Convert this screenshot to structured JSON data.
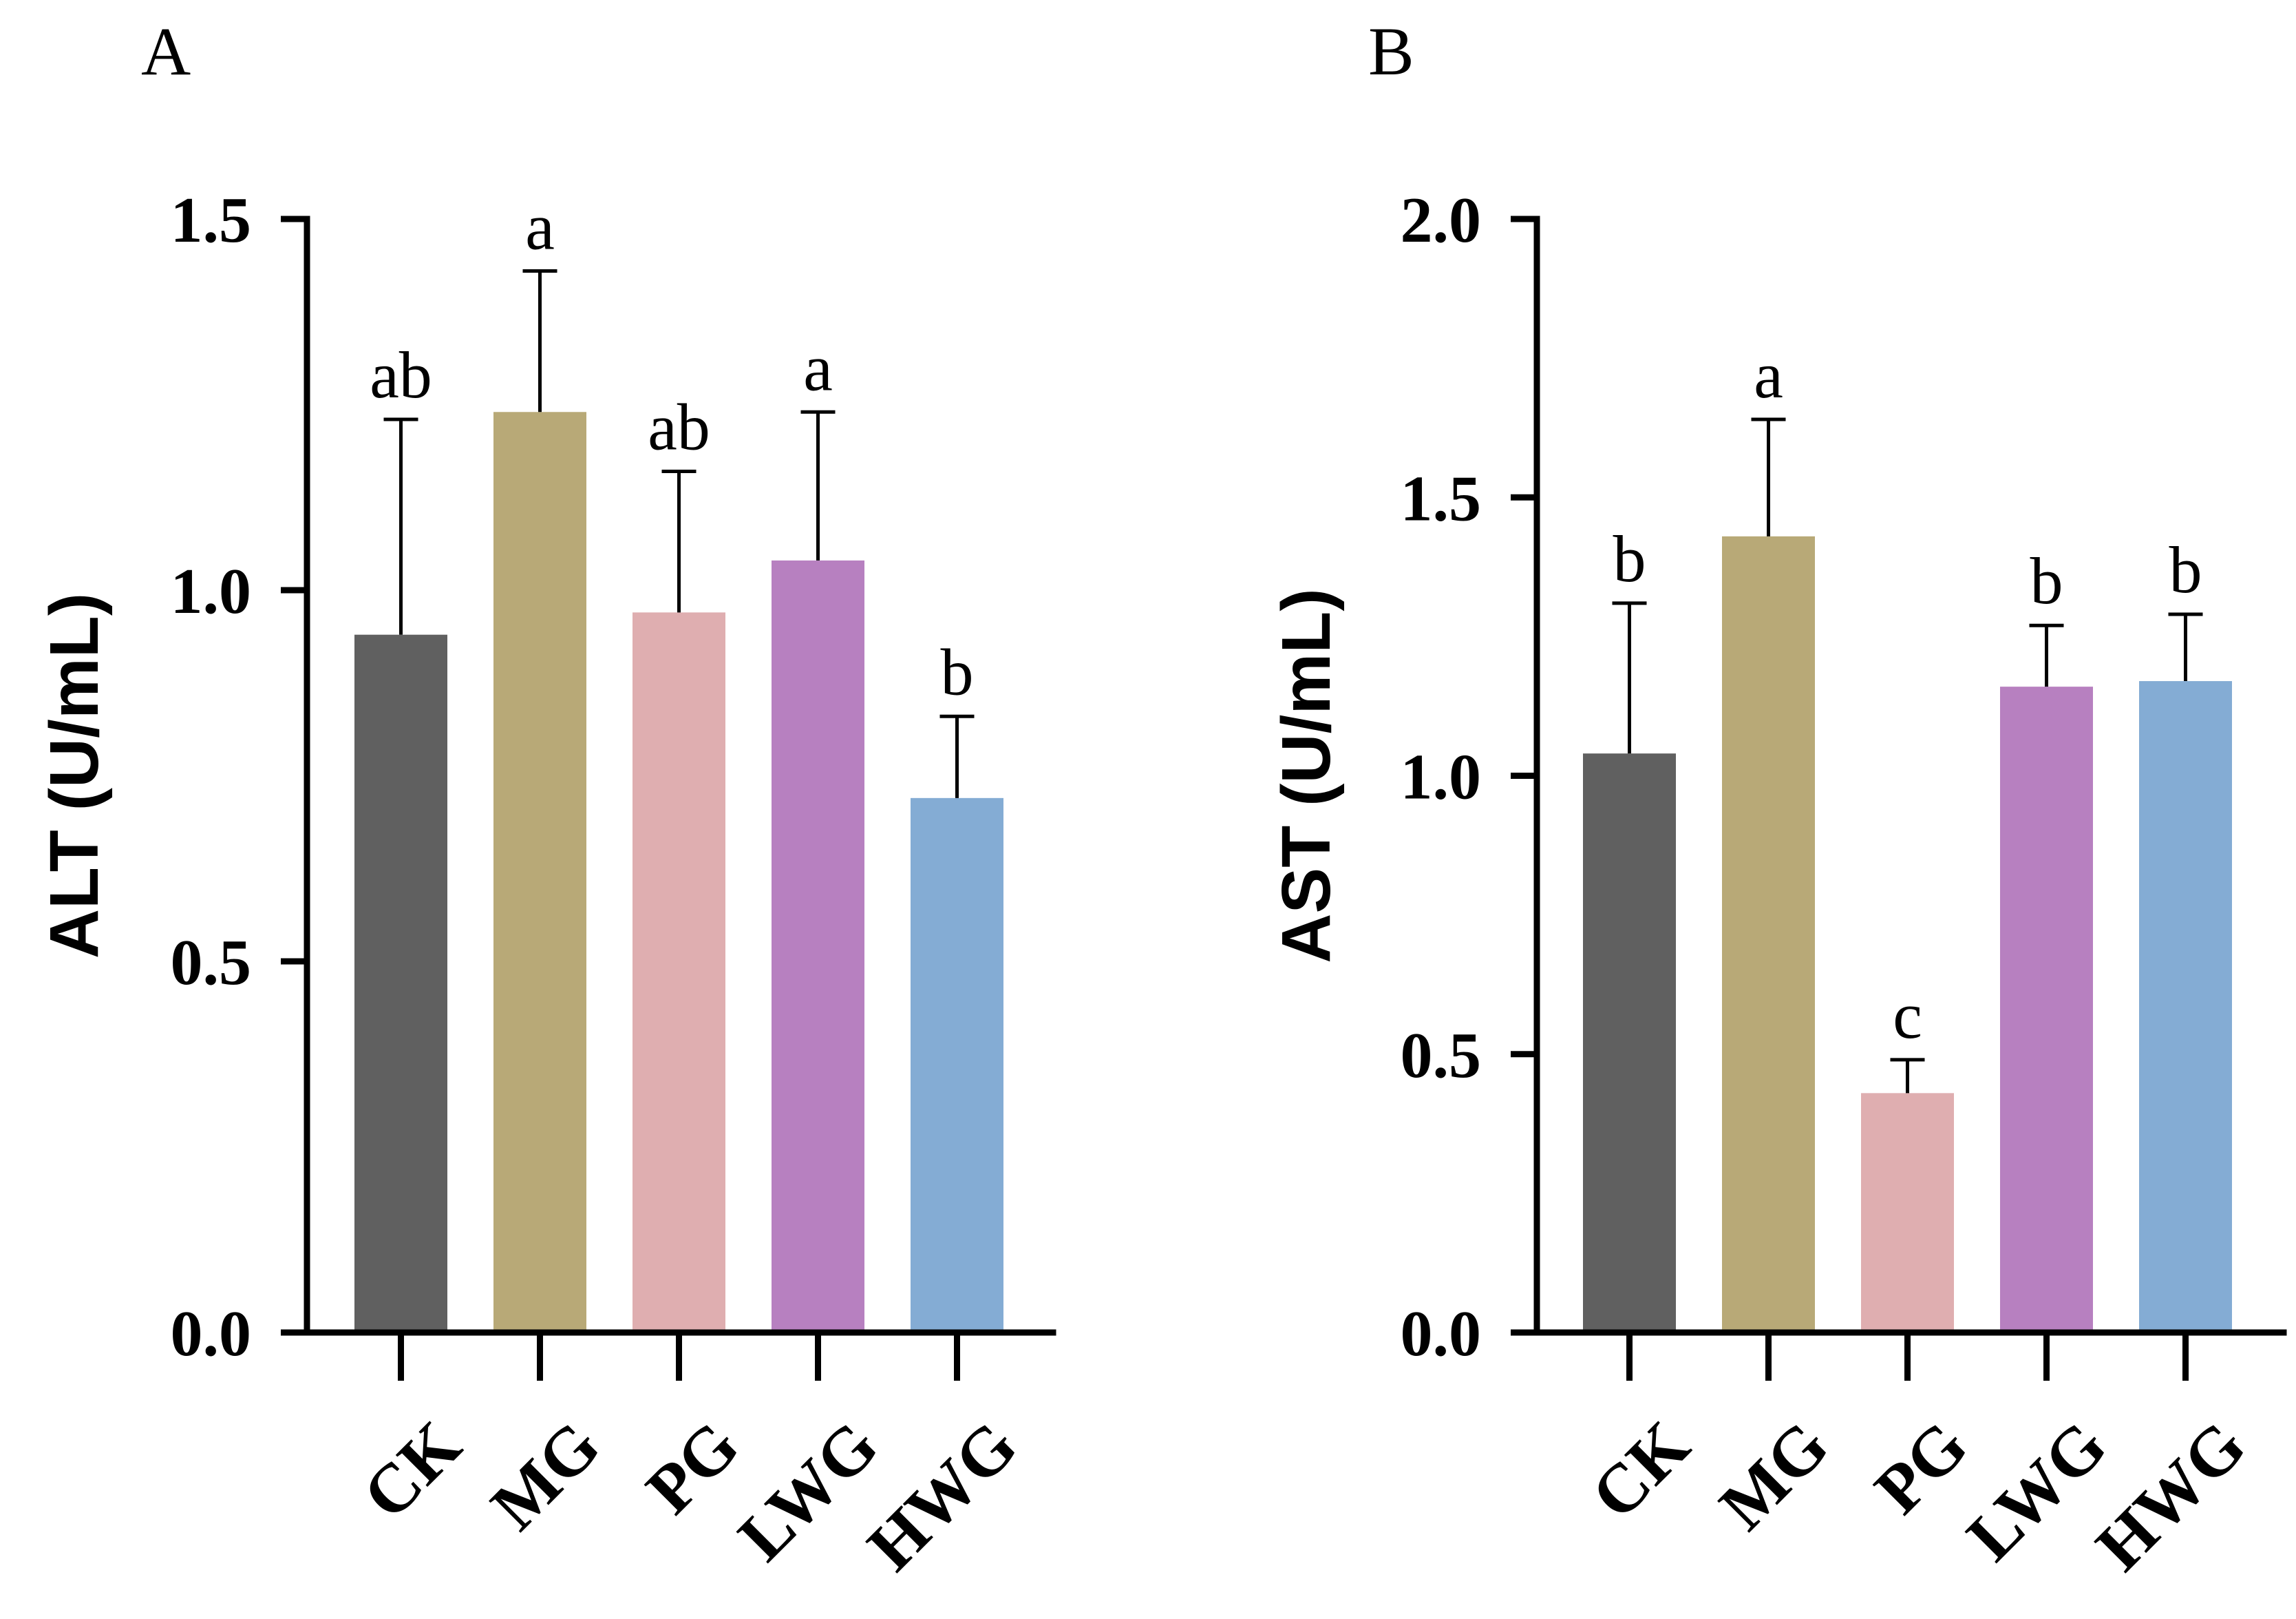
{
  "chart_data": [
    {
      "type": "bar",
      "panel": "A",
      "ylabel": "ALT (U/mL)",
      "xlabel": "",
      "ylim": [
        0,
        1.5
      ],
      "yticks": [
        "0.0",
        "0.5",
        "1.0",
        "1.5"
      ],
      "ytick_values": [
        0,
        0.5,
        1.0,
        1.5
      ],
      "categories": [
        "CK",
        "MG",
        "PG",
        "LWG",
        "HWG"
      ],
      "values": [
        0.94,
        1.24,
        0.97,
        1.04,
        0.72
      ],
      "errors": [
        0.29,
        0.19,
        0.19,
        0.2,
        0.11
      ],
      "significance": [
        "ab",
        "a",
        "ab",
        "a",
        "b"
      ],
      "colors": [
        "#606060",
        "#b8a977",
        "#dfaeb0",
        "#b780c0",
        "#84acd4"
      ]
    },
    {
      "type": "bar",
      "panel": "B",
      "ylabel": "AST (U/mL)",
      "xlabel": "",
      "ylim": [
        0,
        2.0
      ],
      "yticks": [
        "0.0",
        "0.5",
        "1.0",
        "1.5",
        "2.0"
      ],
      "ytick_values": [
        0,
        0.5,
        1.0,
        1.5,
        2.0
      ],
      "categories": [
        "CK",
        "MG",
        "PG",
        "LWG",
        "HWG"
      ],
      "values": [
        1.04,
        1.43,
        0.43,
        1.16,
        1.17
      ],
      "errors": [
        0.27,
        0.21,
        0.06,
        0.11,
        0.12
      ],
      "significance": [
        "b",
        "a",
        "c",
        "b",
        "b"
      ],
      "colors": [
        "#606060",
        "#b8a977",
        "#dfaeb0",
        "#b780c0",
        "#84acd4"
      ]
    }
  ]
}
